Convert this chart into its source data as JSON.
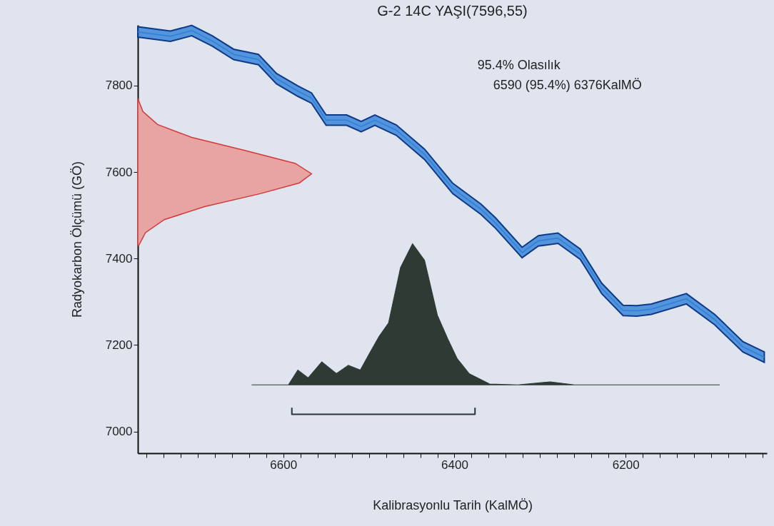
{
  "chart_data": {
    "type": "line",
    "title": "G-2 14C YAŞI(7596,55)",
    "xlabel": "Kalibrasyonlu Tarih (KalMÖ)",
    "ylabel": "Radyokarbon Ölçümü (GÖ)",
    "annotations": [
      "95.4% Olasılık",
      "6590 (95.4%) 6376KalMÖ"
    ],
    "xlim": [
      6770,
      6035
    ],
    "ylim": [
      6950,
      7940
    ],
    "xticks": [
      {
        "value": 6760,
        "label": null
      },
      {
        "value": 6740,
        "label": null
      },
      {
        "value": 6720,
        "label": null
      },
      {
        "value": 6700,
        "label": null
      },
      {
        "value": 6680,
        "label": null
      },
      {
        "value": 6660,
        "label": null
      },
      {
        "value": 6640,
        "label": null
      },
      {
        "value": 6620,
        "label": null
      },
      6600,
      {
        "value": 6580,
        "label": null
      },
      {
        "value": 6560,
        "label": null
      },
      {
        "value": 6540,
        "label": null
      },
      {
        "value": 6520,
        "label": null
      },
      {
        "value": 6500,
        "label": null
      },
      {
        "value": 6480,
        "label": null
      },
      {
        "value": 6460,
        "label": null
      },
      {
        "value": 6440,
        "label": null
      },
      {
        "value": 6420,
        "label": null
      },
      6400,
      {
        "value": 6380,
        "label": null
      },
      {
        "value": 6360,
        "label": null
      },
      {
        "value": 6340,
        "label": null
      },
      {
        "value": 6320,
        "label": null
      },
      {
        "value": 6300,
        "label": null
      },
      {
        "value": 6280,
        "label": null
      },
      {
        "value": 6260,
        "label": null
      },
      {
        "value": 6240,
        "label": null
      },
      {
        "value": 6220,
        "label": null
      },
      6200,
      {
        "value": 6180,
        "label": null
      },
      {
        "value": 6160,
        "label": null
      },
      {
        "value": 6140,
        "label": null
      },
      {
        "value": 6120,
        "label": null
      },
      {
        "value": 6100,
        "label": null
      },
      {
        "value": 6080,
        "label": null
      },
      {
        "value": 6060,
        "label": null
      },
      {
        "value": 6040,
        "label": null
      }
    ],
    "yticks": [
      7000,
      7200,
      7400,
      7600,
      7800
    ],
    "grid": false,
    "marker": "none",
    "series": [
      {
        "color": "#2f7fd8",
        "x": [
          6770,
          6732,
          6707,
          6683,
          6658,
          6629,
          6608,
          6583,
          6567,
          6550,
          6526,
          6509,
          6493,
          6468,
          6435,
          6402,
          6369,
          6352,
          6321,
          6302,
          6279,
          6253,
          6228,
          6203,
          6187,
          6170,
          6129,
          6096,
          6063,
          6038
        ],
        "values": [
          7924,
          7914,
          7927,
          7903,
          7872,
          7860,
          7816,
          7787,
          7771,
          7720,
          7720,
          7705,
          7720,
          7697,
          7641,
          7562,
          7514,
          7482,
          7414,
          7441,
          7447,
          7410,
          7331,
          7280,
          7279,
          7283,
          7307,
          7259,
          7196,
          7172
        ],
        "lower": [
          7912,
          7902,
          7915,
          7891,
          7860,
          7848,
          7804,
          7775,
          7759,
          7708,
          7708,
          7693,
          7708,
          7685,
          7629,
          7550,
          7502,
          7470,
          7402,
          7429,
          7435,
          7398,
          7319,
          7268,
          7267,
          7271,
          7295,
          7247,
          7184,
          7160
        ],
        "upper": [
          7936,
          7926,
          7939,
          7915,
          7884,
          7872,
          7828,
          7799,
          7783,
          7732,
          7732,
          7717,
          7732,
          7709,
          7653,
          7574,
          7526,
          7494,
          7426,
          7453,
          7459,
          7422,
          7343,
          7292,
          7291,
          7295,
          7319,
          7271,
          7208,
          7184
        ]
      },
      {
        "type": "area",
        "color": "#e8a3a3",
        "x": [
          6769,
          6761,
          6739,
          6692,
          6627,
          6581,
          6567,
          6586,
          6645,
          6707,
          6747,
          6764,
          6770
        ],
        "values": [
          7430,
          7460,
          7490,
          7520,
          7550,
          7575,
          7596,
          7620,
          7650,
          7680,
          7710,
          7740,
          7770
        ]
      },
      {
        "type": "area",
        "color": "#2f3a35",
        "x": [
          6637,
          6594,
          6583,
          6571,
          6555,
          6538,
          6524,
          6510,
          6500,
          6488,
          6477,
          6463,
          6449,
          6435,
          6420,
          6408,
          6397,
          6383,
          6359,
          6326,
          6288,
          6260,
          6090
        ],
        "values": [
          7108,
          7108,
          7142,
          7124,
          7161,
          7134,
          7153,
          7142,
          7178,
          7220,
          7251,
          7379,
          7434,
          7396,
          7269,
          7215,
          7169,
          7134,
          7110,
          7108,
          7115,
          7108,
          7108
        ]
      },
      {
        "type": "line",
        "color": "#2a3440",
        "x": [
          6590,
          6590,
          6376,
          6376
        ],
        "values": [
          7055,
          7040,
          7040,
          7055
        ]
      }
    ]
  }
}
